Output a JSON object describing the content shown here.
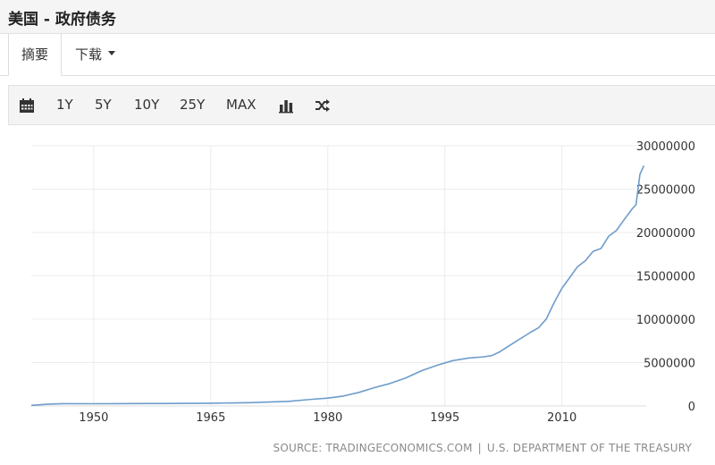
{
  "header": {
    "title": "美国 - 政府债务"
  },
  "tabs": [
    {
      "label": "摘要"
    },
    {
      "label": "下载"
    }
  ],
  "toolbar": {
    "icons": [
      "calendar-icon",
      "bar-chart-icon",
      "shuffle-icon"
    ],
    "ranges": [
      "1Y",
      "5Y",
      "10Y",
      "25Y",
      "MAX"
    ]
  },
  "source": {
    "source_text": "SOURCE: TRADINGECONOMICS.COM",
    "separator": "|",
    "agency": "U.S. DEPARTMENT OF THE TREASURY"
  },
  "colors": {
    "line": "#6e9cca",
    "grid": "#ececec",
    "toolbar_bg": "#f4f4f4"
  },
  "chart_data": {
    "type": "line",
    "title": "",
    "xlabel": "",
    "ylabel": "",
    "xlim": [
      1942,
      2020.8
    ],
    "ylim": [
      0,
      30000000
    ],
    "x_ticks": [
      1950,
      1965,
      1980,
      1995,
      2010
    ],
    "y_ticks": [
      0,
      5000000,
      10000000,
      15000000,
      20000000,
      25000000,
      30000000
    ],
    "y_tick_labels": [
      "0",
      "5000000",
      "10000000",
      "15000000",
      "20000000",
      "25000000",
      "30000000"
    ],
    "grid": true,
    "series": [
      {
        "values": [
          [
            1942,
            72000
          ],
          [
            1944,
            200000
          ],
          [
            1946,
            269000
          ],
          [
            1950,
            257000
          ],
          [
            1955,
            274000
          ],
          [
            1960,
            290000
          ],
          [
            1965,
            317000
          ],
          [
            1970,
            380000
          ],
          [
            1975,
            533000
          ],
          [
            1978,
            771000
          ],
          [
            1980,
            907000
          ],
          [
            1982,
            1142000
          ],
          [
            1984,
            1572000
          ],
          [
            1986,
            2125000
          ],
          [
            1988,
            2602000
          ],
          [
            1990,
            3233000
          ],
          [
            1992,
            4065000
          ],
          [
            1994,
            4693000
          ],
          [
            1996,
            5225000
          ],
          [
            1998,
            5526000
          ],
          [
            2000,
            5674000
          ],
          [
            2001,
            5807000
          ],
          [
            2002,
            6228000
          ],
          [
            2004,
            7379000
          ],
          [
            2006,
            8507000
          ],
          [
            2007,
            9008000
          ],
          [
            2008,
            10025000
          ],
          [
            2009,
            11910000
          ],
          [
            2010,
            13562000
          ],
          [
            2011,
            14790000
          ],
          [
            2012,
            16066000
          ],
          [
            2013,
            16738000
          ],
          [
            2014,
            17824000
          ],
          [
            2015,
            18151000
          ],
          [
            2016,
            19573000
          ],
          [
            2017,
            20245000
          ],
          [
            2018,
            21516000
          ],
          [
            2019,
            22719000
          ],
          [
            2019.5,
            23200000
          ],
          [
            2020,
            26700000
          ],
          [
            2020.5,
            27700000
          ]
        ]
      }
    ]
  }
}
